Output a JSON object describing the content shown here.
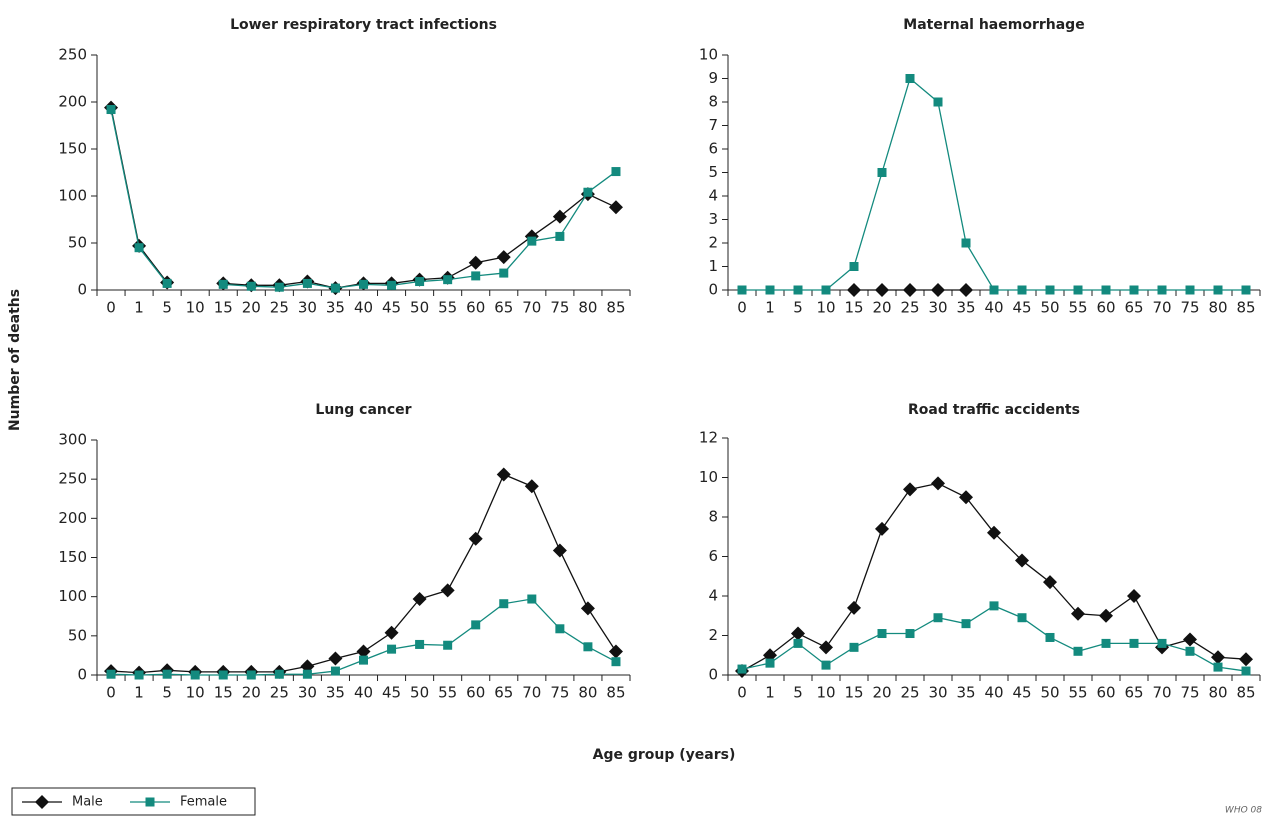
{
  "y_label": "Number of deaths",
  "x_label": "Age group (years)",
  "footnote": "WHO 08",
  "chart_data": [
    {
      "type": "line",
      "title": "Lower respiratory tract infections",
      "categories": [
        "0",
        "1",
        "5",
        "10",
        "15",
        "20",
        "25",
        "30",
        "35",
        "40",
        "45",
        "50",
        "55",
        "60",
        "65",
        "70",
        "75",
        "80",
        "85"
      ],
      "ylim": [
        0,
        250
      ],
      "yticks": [
        0,
        50,
        100,
        150,
        200,
        250
      ],
      "series": [
        {
          "name": "Male",
          "color": "#111111",
          "marker": "diamond",
          "values": [
            194,
            47,
            8,
            null,
            7,
            5,
            5,
            9,
            2,
            7,
            7,
            11,
            13,
            29,
            35,
            57,
            78,
            102,
            88
          ]
        },
        {
          "name": "Female",
          "color": "#138a7e",
          "marker": "square",
          "values": [
            192,
            45,
            7,
            null,
            6,
            4,
            3,
            7,
            2,
            6,
            5,
            9,
            11,
            15,
            18,
            52,
            57,
            104,
            126
          ]
        }
      ]
    },
    {
      "type": "line",
      "title": "Maternal haemorrhage",
      "categories": [
        "0",
        "1",
        "5",
        "10",
        "15",
        "20",
        "25",
        "30",
        "35",
        "40",
        "45",
        "50",
        "55",
        "60",
        "65",
        "70",
        "75",
        "80",
        "85"
      ],
      "ylim": [
        0,
        10
      ],
      "yticks": [
        0,
        1,
        2,
        3,
        4,
        5,
        6,
        7,
        8,
        9,
        10
      ],
      "series": [
        {
          "name": "Male",
          "color": "#111111",
          "marker": "diamond",
          "values": [
            null,
            null,
            null,
            null,
            0,
            0,
            0,
            0,
            0,
            null,
            null,
            null,
            null,
            null,
            null,
            null,
            null,
            null,
            null
          ]
        },
        {
          "name": "Female",
          "color": "#138a7e",
          "marker": "square",
          "values": [
            0,
            0,
            0,
            0,
            1,
            5,
            9,
            8,
            2,
            0,
            0,
            0,
            0,
            0,
            0,
            0,
            0,
            0,
            0
          ]
        }
      ]
    },
    {
      "type": "line",
      "title": "Lung cancer",
      "categories": [
        "0",
        "1",
        "5",
        "10",
        "15",
        "20",
        "25",
        "30",
        "35",
        "40",
        "45",
        "50",
        "55",
        "60",
        "65",
        "70",
        "75",
        "80",
        "85"
      ],
      "ylim": [
        0,
        300
      ],
      "yticks": [
        0,
        50,
        100,
        150,
        200,
        250,
        300
      ],
      "series": [
        {
          "name": "Male",
          "color": "#111111",
          "marker": "diamond",
          "values": [
            5,
            3,
            6,
            4,
            4,
            4,
            4,
            11,
            21,
            30,
            54,
            97,
            108,
            174,
            256,
            241,
            159,
            85,
            30
          ]
        },
        {
          "name": "Female",
          "color": "#138a7e",
          "marker": "square",
          "values": [
            1,
            0,
            1,
            0,
            0,
            0,
            1,
            1,
            5,
            19,
            33,
            39,
            38,
            64,
            91,
            97,
            59,
            36,
            17
          ]
        }
      ]
    },
    {
      "type": "line",
      "title": "Road traffic accidents",
      "categories": [
        "0",
        "1",
        "5",
        "10",
        "15",
        "20",
        "25",
        "30",
        "35",
        "40",
        "45",
        "50",
        "55",
        "60",
        "65",
        "70",
        "75",
        "80",
        "85"
      ],
      "ylim": [
        0,
        12
      ],
      "yticks": [
        0,
        2,
        4,
        6,
        8,
        10,
        12
      ],
      "series": [
        {
          "name": "Male",
          "color": "#111111",
          "marker": "diamond",
          "values": [
            0.2,
            1.0,
            2.1,
            1.4,
            3.4,
            7.4,
            9.4,
            9.7,
            9.0,
            7.2,
            5.8,
            4.7,
            3.1,
            3.0,
            4.0,
            1.4,
            1.8,
            0.9,
            0.8
          ]
        },
        {
          "name": "Female",
          "color": "#138a7e",
          "marker": "square",
          "values": [
            0.3,
            0.6,
            1.6,
            0.5,
            1.4,
            2.1,
            2.1,
            2.9,
            2.6,
            3.5,
            2.9,
            1.9,
            1.2,
            1.6,
            1.6,
            1.6,
            1.2,
            0.4,
            0.2
          ]
        }
      ]
    }
  ]
}
